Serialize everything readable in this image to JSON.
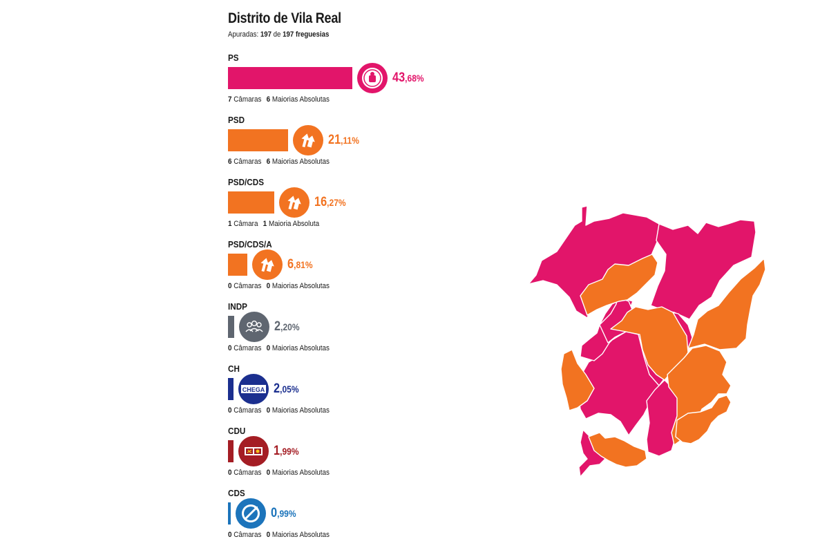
{
  "district": {
    "title": "Distrito de Vila Real",
    "counted_prefix": "Apuradas: ",
    "counted_done": "197",
    "counted_mid": " de ",
    "counted_total": "197 freguesias"
  },
  "colors": {
    "PS": "#e2156a",
    "PSD": "#f27321",
    "INDP": "#5f6670",
    "CH": "#1b2f8f",
    "CDU": "#a41d24",
    "CDS": "#1c74bb"
  },
  "parties": [
    {
      "name": "PS",
      "pct_int": "43",
      "pct_dec": ",68%",
      "value": 43.68,
      "color": "#e2156a",
      "logo": "ps-fist-rose-icon",
      "camaras_n": "7",
      "camaras_label": "Câmaras",
      "maiorias_n": "6",
      "maiorias_label": "Maiorias Absolutas"
    },
    {
      "name": "PSD",
      "pct_int": "21",
      "pct_dec": ",11%",
      "value": 21.11,
      "color": "#f27321",
      "logo": "psd-arrows-icon",
      "camaras_n": "6",
      "camaras_label": "Câmaras",
      "maiorias_n": "6",
      "maiorias_label": "Maiorias Absolutas"
    },
    {
      "name": "PSD/CDS",
      "pct_int": "16",
      "pct_dec": ",27%",
      "value": 16.27,
      "color": "#f27321",
      "logo": "psd-arrows-icon",
      "camaras_n": "1",
      "camaras_label": "Câmara",
      "maiorias_n": "1",
      "maiorias_label": "Maioria Absoluta"
    },
    {
      "name": "PSD/CDS/A",
      "pct_int": "6",
      "pct_dec": ",81%",
      "value": 6.81,
      "color": "#f27321",
      "logo": "psd-arrows-icon",
      "camaras_n": "0",
      "camaras_label": "Câmaras",
      "maiorias_n": "0",
      "maiorias_label": "Maiorias Absolutas"
    },
    {
      "name": "INDP",
      "pct_int": "2",
      "pct_dec": ",20%",
      "value": 2.2,
      "color": "#5f6670",
      "logo": "independents-people-icon",
      "camaras_n": "0",
      "camaras_label": "Câmaras",
      "maiorias_n": "0",
      "maiorias_label": "Maiorias Absolutas"
    },
    {
      "name": "CH",
      "pct_int": "2",
      "pct_dec": ",05%",
      "value": 2.05,
      "color": "#1b2f8f",
      "logo": "chega-logo-icon",
      "logo_text": "CHEGA",
      "camaras_n": "0",
      "camaras_label": "Câmaras",
      "maiorias_n": "0",
      "maiorias_label": "Maiorias Absolutas"
    },
    {
      "name": "CDU",
      "pct_int": "1",
      "pct_dec": ",99%",
      "value": 1.99,
      "color": "#a41d24",
      "logo": "cdu-hammer-sickle-icon",
      "camaras_n": "0",
      "camaras_label": "Câmaras",
      "maiorias_n": "0",
      "maiorias_label": "Maiorias Absolutas"
    },
    {
      "name": "CDS",
      "pct_int": "0",
      "pct_dec": ",99%",
      "value": 0.99,
      "color": "#1c74bb",
      "logo": "cds-ball-icon",
      "camaras_n": "0",
      "camaras_label": "Câmaras",
      "maiorias_n": "0",
      "maiorias_label": "Maiorias Absolutas"
    }
  ],
  "chart_data": {
    "type": "bar",
    "categories": [
      "PS",
      "PSD",
      "PSD/CDS",
      "PSD/CDS/A",
      "INDP",
      "CH",
      "CDU",
      "CDS"
    ],
    "values": [
      43.68,
      21.11,
      16.27,
      6.81,
      2.2,
      2.05,
      1.99,
      0.99
    ],
    "title": "Distrito de Vila Real",
    "orientation": "horizontal"
  },
  "map": {
    "municipalities": [
      {
        "party": "PS"
      },
      {
        "party": "PS"
      },
      {
        "party": "PS"
      },
      {
        "party": "PS"
      },
      {
        "party": "PS"
      },
      {
        "party": "PS"
      },
      {
        "party": "PS"
      },
      {
        "party": "PSD"
      },
      {
        "party": "PSD"
      },
      {
        "party": "PSD"
      },
      {
        "party": "PSD"
      },
      {
        "party": "PSD"
      },
      {
        "party": "PSD"
      },
      {
        "party": "PSD"
      }
    ]
  }
}
